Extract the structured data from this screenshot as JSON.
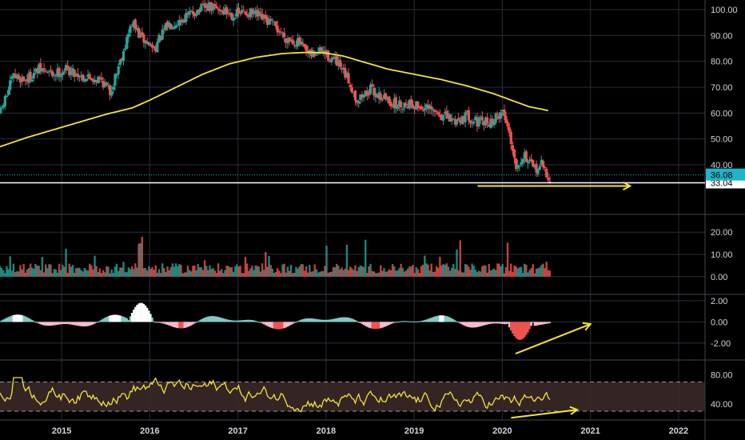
{
  "colors": {
    "background": "#000000",
    "grid": "#2a2e39",
    "up": "#26a69a",
    "down": "#ef5350",
    "ma_line": "#f2e33a",
    "annotation": "#f5e728",
    "current_price_badge": "#20b4c8",
    "rsi_band": "#3d2a2a",
    "text": "#d1d4dc"
  },
  "chart_data": [
    {
      "type": "candlestick",
      "panel": "price",
      "x_ticks": [
        "2015",
        "2016",
        "2017",
        "2018",
        "2019",
        "2020",
        "2021",
        "2022"
      ],
      "x_range": [
        2014.3,
        2022.3
      ],
      "y_ticks": [
        "100.00",
        "90.00",
        "80.00",
        "70.00",
        "60.00",
        "50.00",
        "40.00"
      ],
      "y_range": [
        29,
        103
      ],
      "price_path": [
        [
          2014.3,
          60
        ],
        [
          2014.45,
          74
        ],
        [
          2014.6,
          73
        ],
        [
          2014.75,
          77
        ],
        [
          2014.9,
          75
        ],
        [
          2015.05,
          77
        ],
        [
          2015.25,
          74
        ],
        [
          2015.45,
          73
        ],
        [
          2015.55,
          68
        ],
        [
          2015.65,
          79
        ],
        [
          2015.8,
          95
        ],
        [
          2015.9,
          89
        ],
        [
          2016.05,
          85
        ],
        [
          2016.2,
          94
        ],
        [
          2016.35,
          96
        ],
        [
          2016.5,
          99
        ],
        [
          2016.65,
          101
        ],
        [
          2016.8,
          100
        ],
        [
          2016.95,
          98
        ],
        [
          2017.1,
          99
        ],
        [
          2017.25,
          97
        ],
        [
          2017.4,
          94
        ],
        [
          2017.55,
          89
        ],
        [
          2017.7,
          87
        ],
        [
          2017.8,
          82
        ],
        [
          2017.95,
          84
        ],
        [
          2018.1,
          80
        ],
        [
          2018.25,
          73
        ],
        [
          2018.35,
          65
        ],
        [
          2018.5,
          69
        ],
        [
          2018.65,
          66
        ],
        [
          2018.8,
          63
        ],
        [
          2018.95,
          64
        ],
        [
          2019.1,
          62
        ],
        [
          2019.25,
          60
        ],
        [
          2019.45,
          57
        ],
        [
          2019.6,
          59
        ],
        [
          2019.75,
          56
        ],
        [
          2019.9,
          57
        ],
        [
          2020.0,
          61
        ],
        [
          2020.08,
          53
        ],
        [
          2020.15,
          40
        ],
        [
          2020.25,
          44
        ],
        [
          2020.35,
          38
        ],
        [
          2020.45,
          40
        ],
        [
          2020.55,
          33
        ]
      ],
      "ma_path": [
        [
          2014.3,
          47
        ],
        [
          2014.6,
          50.5
        ],
        [
          2014.9,
          53.5
        ],
        [
          2015.2,
          56.5
        ],
        [
          2015.5,
          59.5
        ],
        [
          2015.8,
          62
        ],
        [
          2016.0,
          65
        ],
        [
          2016.3,
          70
        ],
        [
          2016.6,
          75
        ],
        [
          2016.9,
          79
        ],
        [
          2017.2,
          81.5
        ],
        [
          2017.5,
          83
        ],
        [
          2017.8,
          83.5
        ],
        [
          2018.0,
          83.2
        ],
        [
          2018.2,
          82
        ],
        [
          2018.4,
          80
        ],
        [
          2018.7,
          77
        ],
        [
          2019.0,
          75
        ],
        [
          2019.3,
          73
        ],
        [
          2019.6,
          70.5
        ],
        [
          2019.9,
          67.5
        ],
        [
          2020.1,
          65
        ],
        [
          2020.3,
          62.5
        ],
        [
          2020.52,
          61
        ]
      ],
      "current_price": "36.08",
      "reference_price": "33.04",
      "annotation_arrow": {
        "from": [
          2019.72,
          31.8
        ],
        "to": [
          2021.45,
          31.8
        ]
      }
    },
    {
      "type": "bar",
      "panel": "volume",
      "y_ticks": [
        "20.00",
        "10.00",
        "0.00"
      ],
      "y_range": [
        -8,
        28
      ]
    },
    {
      "type": "histogram",
      "panel": "macd",
      "y_ticks": [
        "2.00",
        "0.00",
        "-2.00"
      ],
      "y_range": [
        -3.6,
        2.6
      ],
      "annotation_arrow": {
        "from": [
          2020.15,
          -3.0
        ],
        "to": [
          2021.0,
          -0.2
        ]
      }
    },
    {
      "type": "line",
      "panel": "rsi",
      "y_ticks": [
        "80.00",
        "40.00"
      ],
      "y_range": [
        18,
        100
      ],
      "band": [
        70,
        30
      ],
      "annotation_arrow": {
        "from": [
          2020.1,
          21
        ],
        "to": [
          2020.85,
          32
        ]
      }
    }
  ]
}
